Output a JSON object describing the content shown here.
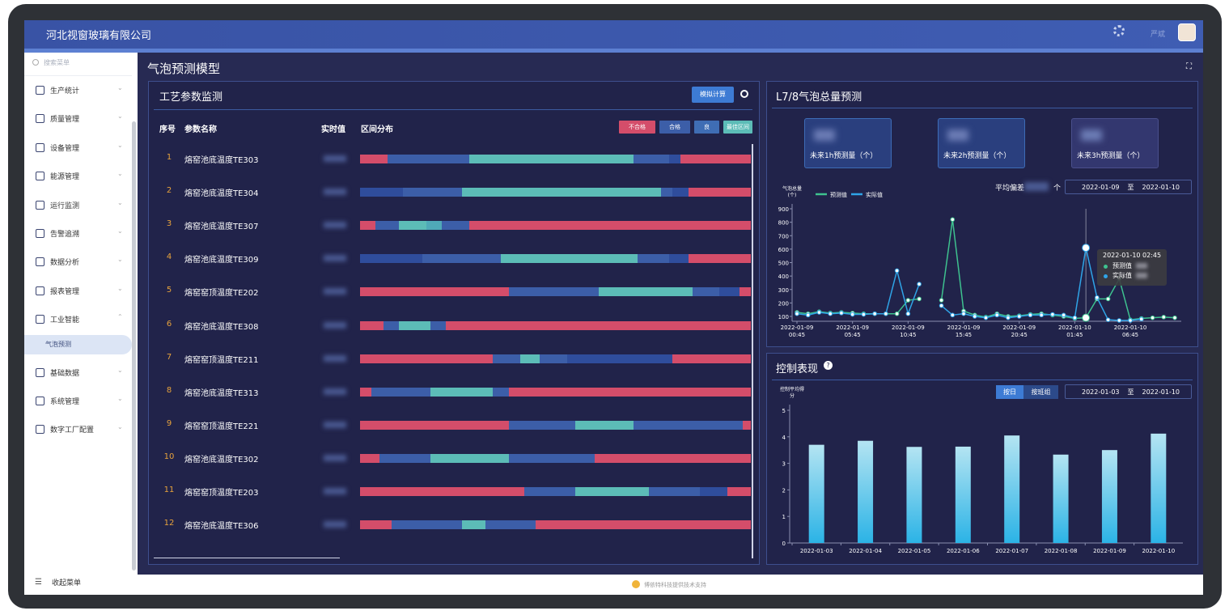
{
  "header": {
    "company": "河北视窗玻璃有限公司",
    "user": "严斌"
  },
  "sidebar": {
    "search": "搜索菜单",
    "collapse": "收起菜单",
    "menu": [
      {
        "label": "生产统计"
      },
      {
        "label": "质量管理"
      },
      {
        "label": "设备管理"
      },
      {
        "label": "能源管理"
      },
      {
        "label": "运行监测"
      },
      {
        "label": "告警追溯"
      },
      {
        "label": "数据分析"
      },
      {
        "label": "报表管理"
      },
      {
        "label": "工业智能",
        "children": [
          "气泡预测"
        ]
      },
      {
        "label": "基础数据"
      },
      {
        "label": "系统管理"
      },
      {
        "label": "数字工厂配置"
      }
    ]
  },
  "page_title": "气泡预测模型",
  "process_panel": {
    "title": "工艺参数监测",
    "button": "模拟计算",
    "columns": [
      "序号",
      "参数名称",
      "实时值",
      "区间分布"
    ],
    "legend": [
      {
        "label": "不合格",
        "color": "#d44d6a"
      },
      {
        "label": "合格",
        "color": "#3c5ea8"
      },
      {
        "label": "良",
        "color": "#3f6db4"
      },
      {
        "label": "最佳区间",
        "color": "#5cbcb7"
      }
    ],
    "rows": [
      {
        "index": 1,
        "name": "熔窑池底温度TE303",
        "segments": [
          {
            "color": "#d44d6a",
            "width": 7
          },
          {
            "color": "#3c5ea8",
            "width": 21
          },
          {
            "color": "#5cbcb7",
            "width": 42
          },
          {
            "color": "#3c5ea8",
            "width": 9
          },
          {
            "color": "#2f4d9c",
            "width": 3
          },
          {
            "color": "#d44d6a",
            "width": 18
          }
        ]
      },
      {
        "index": 2,
        "name": "熔窑池底温度TE304",
        "segments": [
          {
            "color": "#2f4d9c",
            "width": 11
          },
          {
            "color": "#3c5ea8",
            "width": 15
          },
          {
            "color": "#5cbcb7",
            "width": 51
          },
          {
            "color": "#3c5ea8",
            "width": 3
          },
          {
            "color": "#2f4d9c",
            "width": 4
          },
          {
            "color": "#d44d6a",
            "width": 16
          }
        ]
      },
      {
        "index": 3,
        "name": "熔窑池底温度TE307",
        "segments": [
          {
            "color": "#d44d6a",
            "width": 4
          },
          {
            "color": "#3c5ea8",
            "width": 6
          },
          {
            "color": "#5cbcb7",
            "width": 7
          },
          {
            "color": "#4fa9b8",
            "width": 4
          },
          {
            "color": "#3c5ea8",
            "width": 7
          },
          {
            "color": "#d44d6a",
            "width": 72
          }
        ]
      },
      {
        "index": 4,
        "name": "熔窑池底温度TE309",
        "segments": [
          {
            "color": "#2f4d9c",
            "width": 16
          },
          {
            "color": "#3c5ea8",
            "width": 20
          },
          {
            "color": "#5cbcb7",
            "width": 35
          },
          {
            "color": "#3c5ea8",
            "width": 8
          },
          {
            "color": "#2f4d9c",
            "width": 5
          },
          {
            "color": "#d44d6a",
            "width": 16
          }
        ]
      },
      {
        "index": 5,
        "name": "熔窑窑顶温度TE202",
        "segments": [
          {
            "color": "#d44d6a",
            "width": 38
          },
          {
            "color": "#3c5ea8",
            "width": 23
          },
          {
            "color": "#5cbcb7",
            "width": 24
          },
          {
            "color": "#3c5ea8",
            "width": 7
          },
          {
            "color": "#2f4d9c",
            "width": 5
          },
          {
            "color": "#d44d6a",
            "width": 3
          }
        ]
      },
      {
        "index": 6,
        "name": "熔窑池底温度TE308",
        "segments": [
          {
            "color": "#d44d6a",
            "width": 6
          },
          {
            "color": "#3c5ea8",
            "width": 4
          },
          {
            "color": "#5cbcb7",
            "width": 8
          },
          {
            "color": "#3c5ea8",
            "width": 4
          },
          {
            "color": "#d44d6a",
            "width": 78
          }
        ]
      },
      {
        "index": 7,
        "name": "熔窑窑顶温度TE211",
        "segments": [
          {
            "color": "#d44d6a",
            "width": 34
          },
          {
            "color": "#3c5ea8",
            "width": 7
          },
          {
            "color": "#5cbcb7",
            "width": 5
          },
          {
            "color": "#3c5ea8",
            "width": 7
          },
          {
            "color": "#2f4d9c",
            "width": 27
          },
          {
            "color": "#d44d6a",
            "width": 20
          }
        ]
      },
      {
        "index": 8,
        "name": "熔窑池底温度TE313",
        "segments": [
          {
            "color": "#d44d6a",
            "width": 3
          },
          {
            "color": "#3c5ea8",
            "width": 15
          },
          {
            "color": "#5cbcb7",
            "width": 16
          },
          {
            "color": "#3c5ea8",
            "width": 4
          },
          {
            "color": "#d44d6a",
            "width": 62
          }
        ]
      },
      {
        "index": 9,
        "name": "熔窑窑顶温度TE221",
        "segments": [
          {
            "color": "#d44d6a",
            "width": 38
          },
          {
            "color": "#3c5ea8",
            "width": 17
          },
          {
            "color": "#5cbcb7",
            "width": 15
          },
          {
            "color": "#3c5ea8",
            "width": 28
          },
          {
            "color": "#d44d6a",
            "width": 2
          }
        ]
      },
      {
        "index": 10,
        "name": "熔窑池底温度TE302",
        "segments": [
          {
            "color": "#d44d6a",
            "width": 5
          },
          {
            "color": "#3c5ea8",
            "width": 13
          },
          {
            "color": "#5cbcb7",
            "width": 20
          },
          {
            "color": "#3c5ea8",
            "width": 22
          },
          {
            "color": "#d44d6a",
            "width": 40
          }
        ]
      },
      {
        "index": 11,
        "name": "熔窑窑顶温度TE203",
        "segments": [
          {
            "color": "#d44d6a",
            "width": 42
          },
          {
            "color": "#3c5ea8",
            "width": 13
          },
          {
            "color": "#5cbcb7",
            "width": 19
          },
          {
            "color": "#3c5ea8",
            "width": 13
          },
          {
            "color": "#2f4d9c",
            "width": 7
          },
          {
            "color": "#d44d6a",
            "width": 6
          }
        ]
      },
      {
        "index": 12,
        "name": "熔窑池底温度TE306",
        "segments": [
          {
            "color": "#d44d6a",
            "width": 8
          },
          {
            "color": "#3c5ea8",
            "width": 18
          },
          {
            "color": "#5cbcb7",
            "width": 6
          },
          {
            "color": "#3c5ea8",
            "width": 13
          },
          {
            "color": "#d44d6a",
            "width": 55
          }
        ]
      }
    ]
  },
  "forecast_panel": {
    "title": "L7/8气泡总量预测",
    "cards": [
      "未来1h预测量（个）",
      "未来2h预测量（个）",
      "未来3h预测量（个）"
    ],
    "deviation_label": "平均偏差",
    "deviation_unit": "个",
    "date_from": "2022-01-09",
    "date_sep": "至",
    "date_to": "2022-01-10"
  },
  "control_panel": {
    "title": "控制表现",
    "buttons": [
      "按日",
      "按班组"
    ],
    "date_from": "2022-01-03",
    "date_sep": "至",
    "date_to": "2022-01-10"
  },
  "footer": "博依特科技提供技术支持",
  "chart_data": [
    {
      "type": "line",
      "y_label": "气泡总量(个)",
      "categories": [
        "2022-01-09 00:45",
        null,
        null,
        null,
        null,
        "2022-01-09 05:45",
        null,
        null,
        null,
        null,
        "2022-01-09 10:45",
        null,
        null,
        null,
        null,
        "2022-01-09 15:45",
        null,
        null,
        null,
        null,
        "2022-01-09 20:45",
        null,
        null,
        null,
        null,
        "2022-01-10 01:45",
        null,
        null,
        null,
        null,
        "2022-01-10 06:45",
        null,
        null,
        null,
        null
      ],
      "series": [
        {
          "name": "预测值",
          "color": "#3ec28f",
          "values": [
            130,
            120,
            135,
            125,
            130,
            125,
            120,
            120,
            120,
            120,
            220,
            230,
            null,
            220,
            820,
            140,
            110,
            95,
            120,
            100,
            105,
            115,
            120,
            110,
            100,
            85,
            90,
            230,
            230,
            380,
            75,
            85,
            90,
            95,
            90
          ]
        },
        {
          "name": "实际值",
          "color": "#2fa4e7",
          "values": [
            120,
            110,
            130,
            120,
            125,
            115,
            115,
            120,
            120,
            440,
            120,
            340,
            null,
            180,
            110,
            120,
            100,
            90,
            110,
            90,
            100,
            110,
            110,
            115,
            110,
            90,
            610,
            240,
            75,
            70,
            70,
            80,
            null,
            null,
            null
          ]
        }
      ],
      "ylim": [
        64,
        900
      ],
      "yticks": [
        100,
        200,
        300,
        400,
        500,
        600,
        700,
        800,
        900
      ],
      "tooltip": {
        "title": "2022-01-10 02:45",
        "index": 26
      }
    },
    {
      "type": "bar",
      "y_label": "控制平均得分",
      "categories": [
        "2022-01-03",
        "2022-01-04",
        "2022-01-05",
        "2022-01-06",
        "2022-01-07",
        "2022-01-08",
        "2022-01-09",
        "2022-01-10"
      ],
      "values": [
        3.7,
        3.85,
        3.62,
        3.63,
        4.05,
        3.33,
        3.5,
        4.12
      ],
      "colors": [
        "#b4e4f2",
        "#2bb3e6"
      ],
      "ylim": [
        0,
        5
      ],
      "yticks": [
        0,
        1,
        2,
        3,
        4,
        5
      ]
    }
  ]
}
